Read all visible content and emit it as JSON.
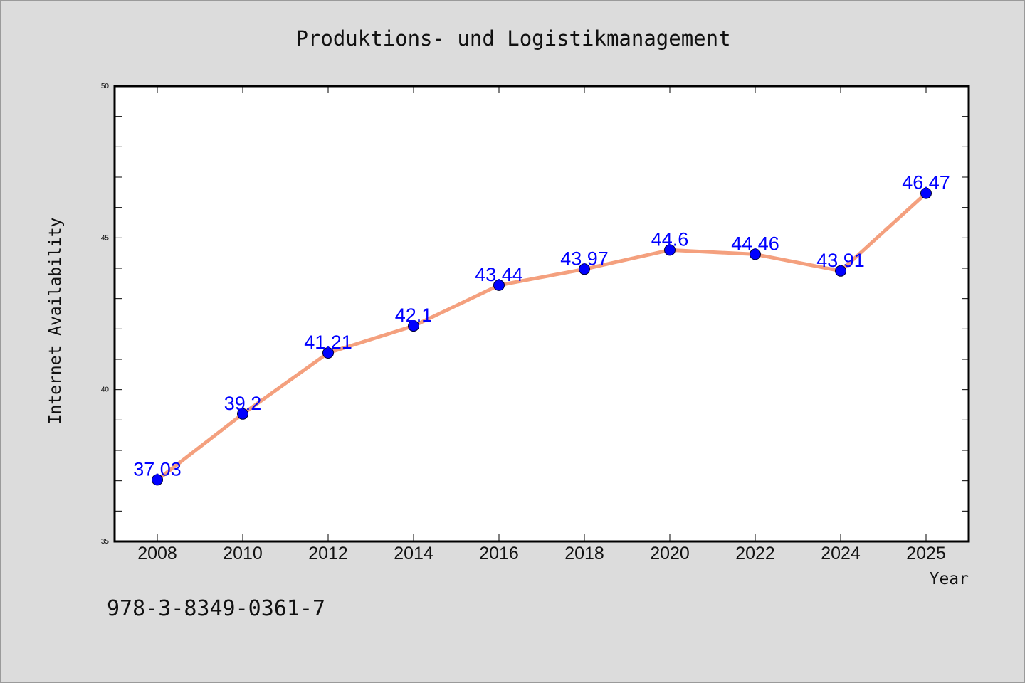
{
  "chart_data": {
    "type": "line",
    "title": "Produktions- und Logistikmanagement",
    "xlabel": "Year",
    "ylabel": "Internet Availability",
    "x": [
      "2008",
      "2010",
      "2012",
      "2014",
      "2016",
      "2018",
      "2020",
      "2022",
      "2024",
      "2025"
    ],
    "series": [
      {
        "values": [
          37.03,
          39.2,
          41.21,
          42.1,
          43.44,
          43.97,
          44.6,
          44.46,
          43.91,
          46.47
        ]
      }
    ],
    "data_labels": [
      "37.03",
      "39.2",
      "41.21",
      "42.1",
      "43.44",
      "43.97",
      "44.6",
      "44.46",
      "43.91",
      "46.47"
    ],
    "ylim": [
      35,
      50
    ],
    "yticks": [
      "35",
      "40",
      "45",
      "50"
    ],
    "grid": false,
    "line_color": "#f4a07e",
    "marker_color": "#0000ff",
    "label_color": "#0000ff",
    "background_color": "#dcdcdc",
    "plot_background_color": "#ffffff"
  },
  "footer": {
    "isbn": "978-3-8349-0361-7"
  }
}
